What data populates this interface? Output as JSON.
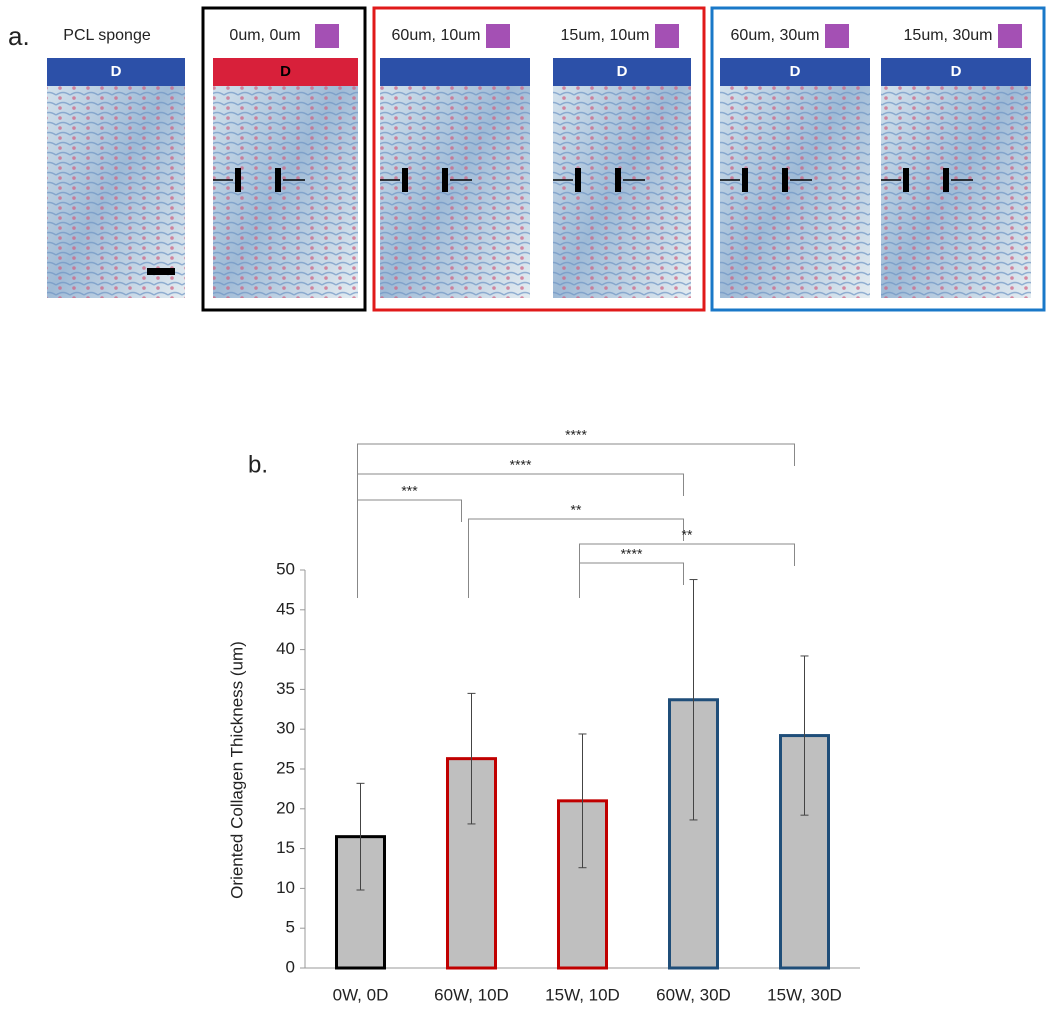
{
  "panel_a": {
    "label": "a.",
    "panels": [
      {
        "title": "PCL sponge",
        "tag": "D"
      },
      {
        "title": "0um, 0um",
        "tag": "D"
      },
      {
        "title": "60um, 10um",
        "tag": null
      },
      {
        "title": "15um, 10um",
        "tag": "D"
      },
      {
        "title": "60um, 30um",
        "tag": "D"
      },
      {
        "title": "15um, 30um",
        "tag": "D"
      }
    ]
  },
  "chart_data": {
    "type": "bar",
    "title": "b.",
    "y_label": "Oriented Collagen Thickness (um)",
    "categories": [
      "0W, 0D",
      "60W, 10D",
      "15W, 10D",
      "60W, 30D",
      "15W, 30D"
    ],
    "values": [
      16.5,
      26.3,
      21,
      33.7,
      29.2
    ],
    "errors": [
      6.7,
      8.2,
      8.4,
      15.1,
      10
    ],
    "colors": [
      "#000000",
      "#c00000",
      "#c00000",
      "#1f4e79",
      "#1f4e79"
    ],
    "fill": "#bfbfbf",
    "ylim": [
      0,
      50
    ],
    "yticks": [
      0,
      5,
      10,
      15,
      20,
      25,
      30,
      35,
      40,
      45,
      50
    ],
    "significance": [
      {
        "from": 0,
        "to": 4,
        "label": "****"
      },
      {
        "from": 0,
        "to": 3,
        "label": "****"
      },
      {
        "from": 0,
        "to": 1,
        "label": "***"
      },
      {
        "from": 1,
        "to": 3,
        "label": "**"
      },
      {
        "from": 2,
        "to": 4,
        "label": "**"
      },
      {
        "from": 2,
        "to": 3,
        "label": "****"
      }
    ]
  }
}
